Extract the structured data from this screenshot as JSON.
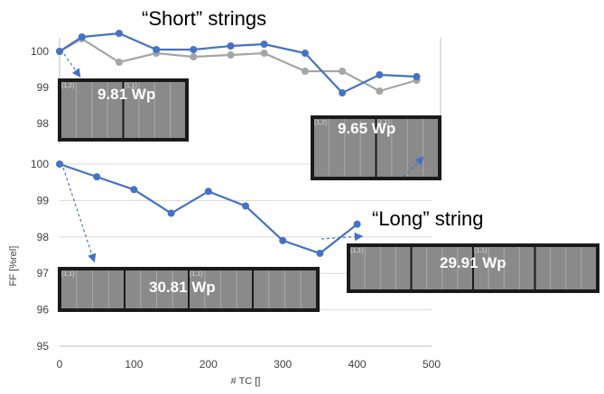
{
  "chart_data": [
    {
      "type": "line",
      "title": "“Short” strings",
      "ylim": [
        97.5,
        100.6
      ],
      "yticks": [
        "100",
        "99",
        "98"
      ],
      "series": [
        {
          "x": [
            0,
            30,
            80,
            130,
            180,
            230,
            275,
            330,
            380,
            430,
            480
          ],
          "values": [
            100.0,
            100.4,
            100.5,
            100.05,
            100.05,
            100.15,
            100.2,
            99.95,
            98.85,
            99.35,
            99.3
          ]
        },
        {
          "x": [
            0,
            30,
            80,
            130,
            180,
            230,
            275,
            330,
            380,
            430,
            480
          ],
          "values": [
            100.0,
            100.35,
            99.7,
            99.95,
            99.85,
            99.9,
            99.95,
            99.45,
            99.45,
            98.9,
            99.2
          ]
        }
      ]
    },
    {
      "type": "line",
      "title": "“Long” string",
      "xlabel": "# TC []",
      "ylabel": "FF [%rel]",
      "xlim": [
        0,
        500
      ],
      "ylim": [
        95,
        100
      ],
      "xticks": [
        "0",
        "100",
        "200",
        "300",
        "400",
        "500"
      ],
      "yticks": [
        "100",
        "99",
        "98",
        "97",
        "96",
        "95"
      ],
      "series": [
        {
          "x": [
            0,
            50,
            100,
            150,
            200,
            250,
            300,
            350,
            400
          ],
          "values": [
            100.0,
            99.65,
            99.3,
            98.65,
            99.25,
            98.85,
            97.9,
            97.55,
            98.35
          ]
        }
      ]
    }
  ],
  "images": [
    {
      "label": "9.81 Wp",
      "cell_ids": [
        "(1,2)",
        "(1,1)"
      ]
    },
    {
      "label": "9.65 Wp",
      "cell_ids": [
        "(1,2)",
        "(1,1)"
      ]
    },
    {
      "label": "30.81 Wp",
      "cell_ids": [
        "(1,1)",
        "(1,1)"
      ]
    },
    {
      "label": "29.91 Wp",
      "cell_ids": [
        "(1,1)",
        "(1,1)"
      ]
    }
  ],
  "colors": {
    "blue": "#4472C4",
    "gray": "#A5A5A5",
    "grid": "#D9D9D9"
  }
}
